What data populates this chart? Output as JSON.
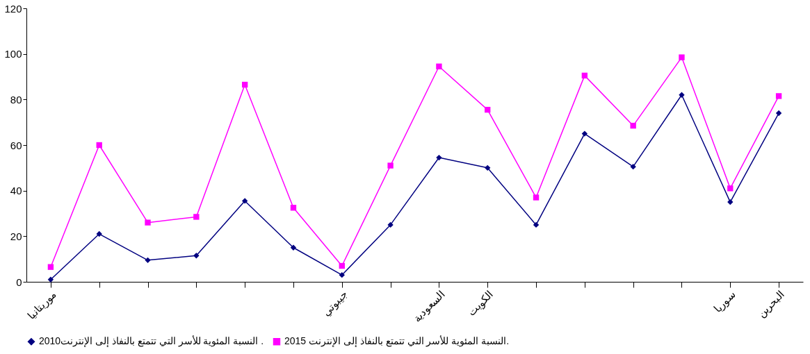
{
  "chart_data": {
    "type": "line",
    "categories": [
      "موريتانيا",
      null,
      null,
      null,
      null,
      null,
      "جيبوتي",
      null,
      "السعودية",
      "الكويت",
      null,
      null,
      null,
      null,
      "سوريا",
      "البحرين"
    ],
    "series": [
      {
        "name": "النسبة المئوية للأسر التي تتمتع بالنفاذ إلى الإنترنت2010 .",
        "color": "#000080",
        "marker": "diamond",
        "values": [
          1,
          21,
          9.5,
          11.5,
          35.5,
          15,
          3,
          25,
          54.5,
          50,
          25,
          65,
          50.5,
          82,
          35,
          74
        ]
      },
      {
        "name": "النسبة المئوية للأسر التي تتمتع بالنفاذ إلى الإنترنت 2015.",
        "color": "#ff00ff",
        "marker": "square",
        "values": [
          6.5,
          60,
          26,
          28.5,
          86.5,
          32.5,
          7,
          51,
          94.5,
          75.5,
          37,
          90.5,
          68.5,
          98.5,
          41,
          81.5
        ]
      }
    ],
    "ylim": [
      0,
      120
    ],
    "yticks": [
      0,
      20,
      40,
      60,
      80,
      100,
      120
    ],
    "grid": false,
    "legend": "bottom"
  }
}
